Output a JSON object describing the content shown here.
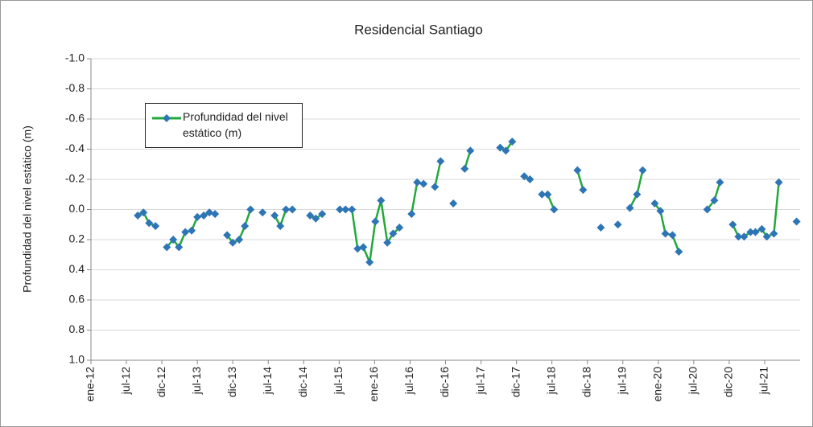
{
  "chart_data": {
    "type": "line",
    "title": "Residencial Santiago",
    "y_label": "Profundidad del nivel estático (m)",
    "x": [
      2012.66,
      2012.74,
      2012.82,
      2012.91,
      null,
      2013.07,
      2013.16,
      2013.24,
      2013.33,
      2013.42,
      2013.5,
      2013.59,
      2013.67,
      2013.75,
      null,
      2013.92,
      2014.0,
      2014.09,
      2014.17,
      2014.25,
      null,
      2014.42,
      null,
      2014.59,
      2014.67,
      2014.75,
      2014.84,
      null,
      2015.09,
      2015.17,
      2015.26,
      null,
      2015.51,
      2015.59,
      2015.68,
      2015.76,
      2015.84,
      2015.93,
      2016.01,
      2016.09,
      2016.18,
      2016.26,
      2016.35,
      null,
      2016.52,
      2016.6,
      2016.69,
      null,
      2016.85,
      2016.93,
      null,
      2017.11,
      null,
      2017.27,
      2017.35,
      null,
      2017.77,
      2017.85,
      2017.94,
      null,
      2018.11,
      2018.19,
      null,
      2018.36,
      2018.44,
      2018.53,
      null,
      2018.86,
      2018.94,
      null,
      2019.19,
      null,
      2019.43,
      null,
      2019.6,
      2019.7,
      2019.78,
      null,
      2019.95,
      2020.03,
      2020.1,
      2020.2,
      2020.29,
      null,
      2020.69,
      2020.79,
      2020.87,
      null,
      2021.05,
      2021.13,
      2021.21,
      2021.3,
      2021.37,
      2021.46,
      2021.53,
      2021.63,
      2021.7,
      null,
      2021.95
    ],
    "series": [
      {
        "name": "Profundidad del nivel estático (m)",
        "color": "#22a83c",
        "marker_color": "#2e75b6",
        "values": [
          0.04,
          0.02,
          0.09,
          0.11,
          null,
          0.25,
          0.2,
          0.25,
          0.15,
          0.14,
          0.05,
          0.04,
          0.02,
          0.03,
          null,
          0.17,
          0.22,
          0.2,
          0.11,
          0.0,
          null,
          0.02,
          null,
          0.04,
          0.11,
          0.0,
          0.0,
          null,
          0.04,
          0.06,
          0.03,
          null,
          0.0,
          0.0,
          0.0,
          0.26,
          0.25,
          0.35,
          0.08,
          -0.06,
          0.22,
          0.16,
          0.12,
          null,
          0.03,
          -0.18,
          -0.17,
          null,
          -0.15,
          -0.32,
          null,
          -0.04,
          null,
          -0.27,
          -0.39,
          null,
          -0.41,
          -0.39,
          -0.45,
          null,
          -0.22,
          -0.2,
          null,
          -0.1,
          -0.1,
          0.0,
          null,
          -0.26,
          -0.13,
          null,
          0.12,
          null,
          0.1,
          null,
          -0.01,
          -0.1,
          -0.26,
          null,
          -0.04,
          0.01,
          0.16,
          0.17,
          0.28,
          null,
          0.0,
          -0.06,
          -0.18,
          null,
          0.1,
          0.18,
          0.18,
          0.15,
          0.15,
          0.13,
          0.18,
          0.16,
          -0.18,
          null,
          0.08
        ]
      }
    ],
    "xlim": [
      2012,
      2022
    ],
    "xticks": [
      {
        "value": 2012,
        "label": "ene-12"
      },
      {
        "value": 2012.5,
        "label": "jul-12"
      },
      {
        "value": 2013,
        "label": "dic-12"
      },
      {
        "value": 2013.5,
        "label": "jul-13"
      },
      {
        "value": 2014,
        "label": "dic-13"
      },
      {
        "value": 2014.5,
        "label": "jul-14"
      },
      {
        "value": 2015,
        "label": "dic-14"
      },
      {
        "value": 2015.5,
        "label": "jul-15"
      },
      {
        "value": 2016,
        "label": "ene-16"
      },
      {
        "value": 2016.5,
        "label": "jul-16"
      },
      {
        "value": 2017,
        "label": "dic-16"
      },
      {
        "value": 2017.5,
        "label": "jul-17"
      },
      {
        "value": 2018,
        "label": "dic-17"
      },
      {
        "value": 2018.5,
        "label": "jul-18"
      },
      {
        "value": 2019,
        "label": "dic-18"
      },
      {
        "value": 2019.5,
        "label": "jul-19"
      },
      {
        "value": 2020,
        "label": "ene-20"
      },
      {
        "value": 2020.5,
        "label": "jul-20"
      },
      {
        "value": 2021,
        "label": "dic-20"
      },
      {
        "value": 2021.5,
        "label": "jul-21"
      }
    ],
    "ylim": [
      -1,
      1
    ],
    "y_reversed": true,
    "yticks": [
      {
        "value": -1,
        "label": "-1.0"
      },
      {
        "value": -0.8,
        "label": "-0.8"
      },
      {
        "value": -0.6,
        "label": "-0.6"
      },
      {
        "value": -0.4,
        "label": "-0.4"
      },
      {
        "value": -0.2,
        "label": "-0.2"
      },
      {
        "value": 0,
        "label": "0.0"
      },
      {
        "value": 0.2,
        "label": "0.2"
      },
      {
        "value": 0.4,
        "label": "0.4"
      },
      {
        "value": 0.6,
        "label": "0.6"
      },
      {
        "value": 0.8,
        "label": "0.8"
      },
      {
        "value": 1,
        "label": "1.0"
      }
    ],
    "grid": true
  }
}
